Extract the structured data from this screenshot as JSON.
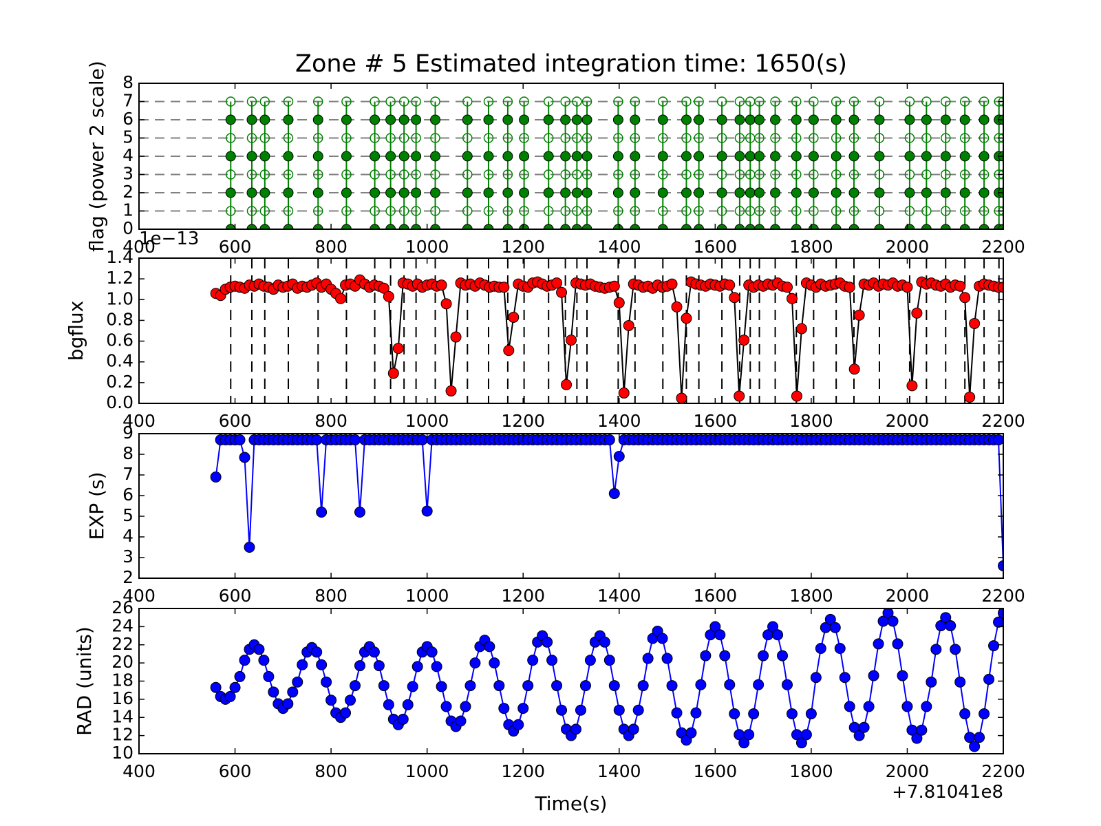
{
  "chart_data": [
    {
      "type": "flag",
      "title": "Zone # 5 Estimated integration time: 1650(s)",
      "ylabel": "flag (power 2 scale)",
      "x_offset": "+7.81041e8",
      "color": "#008000",
      "x": [
        591,
        635,
        662,
        711,
        773,
        832,
        891,
        924,
        952,
        977,
        1017,
        1084,
        1128,
        1168,
        1202,
        1253,
        1288,
        1312,
        1333,
        1398,
        1433,
        1491,
        1540,
        1566,
        1614,
        1651,
        1673,
        1692,
        1725,
        1769,
        1805,
        1852,
        1889,
        1942,
        2005,
        2040,
        2080,
        2120,
        2160,
        2191,
        2200
      ],
      "filled_levels": [
        0,
        2,
        4,
        6
      ],
      "open_levels": [
        1,
        3,
        5,
        7
      ],
      "hlines": [
        1,
        2,
        3,
        4,
        5,
        6,
        7
      ],
      "xlim": [
        400,
        2200
      ],
      "xticks": [
        400,
        600,
        800,
        1000,
        1200,
        1400,
        1600,
        1800,
        2000,
        2200
      ],
      "ylim": [
        0,
        8
      ],
      "yticks": [
        0,
        1,
        2,
        3,
        4,
        5,
        6,
        7,
        8
      ]
    },
    {
      "type": "line",
      "ylabel": "bgflux",
      "y_offset": "1e−13",
      "color": "#ff0000",
      "line_color": "#000000",
      "vlines": [
        591,
        635,
        662,
        711,
        773,
        832,
        891,
        924,
        952,
        977,
        1017,
        1084,
        1128,
        1168,
        1202,
        1253,
        1288,
        1312,
        1333,
        1398,
        1433,
        1491,
        1540,
        1566,
        1614,
        1651,
        1673,
        1692,
        1725,
        1769,
        1805,
        1852,
        1889,
        1942,
        2005,
        2040,
        2080,
        2120,
        2160,
        2191,
        2200
      ],
      "x": [
        560,
        570,
        580,
        590,
        600,
        610,
        620,
        630,
        640,
        650,
        660,
        670,
        680,
        690,
        700,
        710,
        720,
        730,
        740,
        750,
        760,
        770,
        780,
        790,
        800,
        810,
        820,
        830,
        840,
        850,
        860,
        870,
        880,
        890,
        900,
        910,
        920,
        930,
        940,
        950,
        960,
        970,
        980,
        990,
        1000,
        1010,
        1020,
        1030,
        1040,
        1050,
        1060,
        1070,
        1080,
        1090,
        1100,
        1110,
        1120,
        1130,
        1140,
        1150,
        1160,
        1170,
        1180,
        1190,
        1200,
        1210,
        1220,
        1230,
        1240,
        1250,
        1260,
        1270,
        1280,
        1290,
        1300,
        1310,
        1320,
        1330,
        1340,
        1350,
        1360,
        1370,
        1380,
        1390,
        1400,
        1410,
        1420,
        1430,
        1440,
        1450,
        1460,
        1470,
        1480,
        1490,
        1500,
        1510,
        1520,
        1530,
        1540,
        1550,
        1560,
        1570,
        1580,
        1590,
        1600,
        1610,
        1620,
        1630,
        1640,
        1650,
        1660,
        1670,
        1680,
        1690,
        1700,
        1710,
        1720,
        1730,
        1740,
        1750,
        1760,
        1770,
        1780,
        1790,
        1800,
        1810,
        1820,
        1830,
        1840,
        1850,
        1860,
        1870,
        1880,
        1890,
        1900,
        1910,
        1920,
        1930,
        1940,
        1950,
        1960,
        1970,
        1980,
        1990,
        2000,
        2010,
        2020,
        2030,
        2040,
        2050,
        2060,
        2070,
        2080,
        2090,
        2100,
        2110,
        2120,
        2130,
        2140,
        2150,
        2160,
        2170,
        2180,
        2190,
        2200
      ],
      "values": [
        1.06,
        1.04,
        1.1,
        1.12,
        1.13,
        1.12,
        1.11,
        1.14,
        1.13,
        1.15,
        1.13,
        1.12,
        1.1,
        1.14,
        1.12,
        1.13,
        1.15,
        1.11,
        1.13,
        1.12,
        1.14,
        1.16,
        1.12,
        1.15,
        1.1,
        1.06,
        1.01,
        1.14,
        1.15,
        1.13,
        1.19,
        1.15,
        1.12,
        1.14,
        1.13,
        1.11,
        1.03,
        0.29,
        0.53,
        1.16,
        1.15,
        1.13,
        1.15,
        1.12,
        1.14,
        1.15,
        1.13,
        1.14,
        0.96,
        0.12,
        0.64,
        1.16,
        1.14,
        1.15,
        1.13,
        1.16,
        1.14,
        1.12,
        1.13,
        1.12,
        1.12,
        0.51,
        0.83,
        1.15,
        1.13,
        1.12,
        1.16,
        1.17,
        1.15,
        1.13,
        1.14,
        1.16,
        1.07,
        0.18,
        0.61,
        1.16,
        1.15,
        1.14,
        1.15,
        1.13,
        1.12,
        1.11,
        1.12,
        1.13,
        0.97,
        0.1,
        0.75,
        1.15,
        1.14,
        1.12,
        1.13,
        1.11,
        1.14,
        1.12,
        1.13,
        1.15,
        0.93,
        0.05,
        0.82,
        1.17,
        1.15,
        1.14,
        1.13,
        1.15,
        1.14,
        1.13,
        1.15,
        1.14,
        1.02,
        0.07,
        0.61,
        1.14,
        1.12,
        1.14,
        1.13,
        1.15,
        1.14,
        1.16,
        1.13,
        1.12,
        1.01,
        0.07,
        0.72,
        1.16,
        1.14,
        1.12,
        1.15,
        1.13,
        1.14,
        1.15,
        1.16,
        1.13,
        1.12,
        0.33,
        0.85,
        1.15,
        1.14,
        1.16,
        1.13,
        1.15,
        1.14,
        1.16,
        1.13,
        1.14,
        1.12,
        0.17,
        0.87,
        1.17,
        1.15,
        1.16,
        1.14,
        1.13,
        1.15,
        1.12,
        1.14,
        1.13,
        1.02,
        0.06,
        0.77,
        1.13,
        1.15,
        1.14,
        1.13,
        1.12,
        1.12
      ],
      "xlim": [
        400,
        2200
      ],
      "xticks": [
        400,
        600,
        800,
        1000,
        1200,
        1400,
        1600,
        1800,
        2000,
        2200
      ],
      "ylim": [
        0,
        1.4
      ],
      "yticks": [
        {
          "value": 0,
          "label": "0.0"
        },
        0.2,
        0.4,
        0.6,
        0.8,
        {
          "value": 1,
          "label": "1.0"
        },
        1.2,
        1.4
      ]
    },
    {
      "type": "line",
      "ylabel": "EXP (s)",
      "color": "#0000ff",
      "line_color": "#0000ff",
      "x": [
        560,
        570,
        580,
        590,
        600,
        610,
        620,
        630,
        640,
        650,
        660,
        670,
        680,
        690,
        700,
        710,
        720,
        730,
        740,
        750,
        760,
        770,
        780,
        790,
        800,
        810,
        820,
        830,
        840,
        850,
        860,
        870,
        880,
        890,
        900,
        910,
        920,
        930,
        940,
        950,
        960,
        970,
        980,
        990,
        1000,
        1010,
        1020,
        1030,
        1040,
        1050,
        1060,
        1070,
        1080,
        1090,
        1100,
        1110,
        1120,
        1130,
        1140,
        1150,
        1160,
        1170,
        1180,
        1190,
        1200,
        1210,
        1220,
        1230,
        1240,
        1250,
        1260,
        1270,
        1280,
        1290,
        1300,
        1310,
        1320,
        1330,
        1340,
        1350,
        1360,
        1370,
        1380,
        1390,
        1400,
        1410,
        1420,
        1430,
        1440,
        1450,
        1460,
        1470,
        1480,
        1490,
        1500,
        1510,
        1520,
        1530,
        1540,
        1550,
        1560,
        1570,
        1580,
        1590,
        1600,
        1610,
        1620,
        1630,
        1640,
        1650,
        1660,
        1670,
        1680,
        1690,
        1700,
        1710,
        1720,
        1730,
        1740,
        1750,
        1760,
        1770,
        1780,
        1790,
        1800,
        1810,
        1820,
        1830,
        1840,
        1850,
        1860,
        1870,
        1880,
        1890,
        1900,
        1910,
        1920,
        1930,
        1940,
        1950,
        1960,
        1970,
        1980,
        1990,
        2000,
        2010,
        2020,
        2030,
        2040,
        2050,
        2060,
        2070,
        2080,
        2090,
        2100,
        2110,
        2120,
        2130,
        2140,
        2150,
        2160,
        2170,
        2180,
        2190,
        2200
      ],
      "values": [
        6.9,
        8.7,
        8.7,
        8.7,
        8.7,
        8.7,
        7.85,
        3.5,
        8.7,
        8.7,
        8.7,
        8.7,
        8.7,
        8.7,
        8.7,
        8.7,
        8.7,
        8.7,
        8.7,
        8.7,
        8.7,
        8.7,
        5.2,
        8.7,
        8.7,
        8.7,
        8.7,
        8.7,
        8.7,
        8.7,
        5.2,
        8.7,
        8.7,
        8.7,
        8.7,
        8.7,
        8.7,
        8.7,
        8.7,
        8.7,
        8.7,
        8.7,
        8.7,
        8.7,
        5.25,
        8.7,
        8.7,
        8.7,
        8.7,
        8.7,
        8.7,
        8.7,
        8.7,
        8.7,
        8.7,
        8.7,
        8.7,
        8.7,
        8.7,
        8.7,
        8.7,
        8.7,
        8.7,
        8.7,
        8.7,
        8.7,
        8.7,
        8.7,
        8.7,
        8.7,
        8.7,
        8.7,
        8.7,
        8.7,
        8.7,
        8.7,
        8.7,
        8.7,
        8.7,
        8.7,
        8.7,
        8.7,
        8.7,
        6.1,
        7.9,
        8.7,
        8.7,
        8.7,
        8.7,
        8.7,
        8.7,
        8.7,
        8.7,
        8.7,
        8.7,
        8.7,
        8.7,
        8.7,
        8.7,
        8.7,
        8.7,
        8.7,
        8.7,
        8.7,
        8.7,
        8.7,
        8.7,
        8.7,
        8.7,
        8.7,
        8.7,
        8.7,
        8.7,
        8.7,
        8.7,
        8.7,
        8.7,
        8.7,
        8.7,
        8.7,
        8.7,
        8.7,
        8.7,
        8.7,
        8.7,
        8.7,
        8.7,
        8.7,
        8.7,
        8.7,
        8.7,
        8.7,
        8.7,
        8.7,
        8.7,
        8.7,
        8.7,
        8.7,
        8.7,
        8.7,
        8.7,
        8.7,
        8.7,
        8.7,
        8.7,
        8.7,
        8.7,
        8.7,
        8.7,
        8.7,
        8.7,
        8.7,
        8.7,
        8.7,
        8.7,
        8.7,
        8.7,
        8.7,
        8.7,
        8.7,
        8.7,
        8.7,
        8.7,
        8.7,
        2.6
      ],
      "xlim": [
        400,
        2200
      ],
      "xticks": [
        400,
        600,
        800,
        1000,
        1200,
        1400,
        1600,
        1800,
        2000,
        2200
      ],
      "ylim": [
        2,
        9
      ],
      "yticks": [
        2,
        3,
        4,
        5,
        6,
        7,
        8,
        9
      ]
    },
    {
      "type": "line",
      "ylabel": "RAD (units)",
      "xlabel": "Time(s)",
      "x_offset": "+7.81041e8",
      "color": "#0000ff",
      "line_color": "#0000ff",
      "x": [
        560,
        570,
        580,
        590,
        600,
        610,
        620,
        630,
        640,
        650,
        660,
        670,
        680,
        690,
        700,
        710,
        720,
        730,
        740,
        750,
        760,
        770,
        780,
        790,
        800,
        810,
        820,
        830,
        840,
        850,
        860,
        870,
        880,
        890,
        900,
        910,
        920,
        930,
        940,
        950,
        960,
        970,
        980,
        990,
        1000,
        1010,
        1020,
        1030,
        1040,
        1050,
        1060,
        1070,
        1080,
        1090,
        1100,
        1110,
        1120,
        1130,
        1140,
        1150,
        1160,
        1170,
        1180,
        1190,
        1200,
        1210,
        1220,
        1230,
        1240,
        1250,
        1260,
        1270,
        1280,
        1290,
        1300,
        1310,
        1320,
        1330,
        1340,
        1350,
        1360,
        1370,
        1380,
        1390,
        1400,
        1410,
        1420,
        1430,
        1440,
        1450,
        1460,
        1470,
        1480,
        1490,
        1500,
        1510,
        1520,
        1530,
        1540,
        1550,
        1560,
        1570,
        1580,
        1590,
        1600,
        1610,
        1620,
        1630,
        1640,
        1650,
        1660,
        1670,
        1680,
        1690,
        1700,
        1710,
        1720,
        1730,
        1740,
        1750,
        1760,
        1770,
        1780,
        1790,
        1800,
        1810,
        1820,
        1830,
        1840,
        1850,
        1860,
        1870,
        1880,
        1890,
        1900,
        1910,
        1920,
        1930,
        1940,
        1950,
        1960,
        1970,
        1980,
        1990,
        2000,
        2010,
        2020,
        2030,
        2040,
        2050,
        2060,
        2070,
        2080,
        2090,
        2100,
        2110,
        2120,
        2130,
        2140,
        2150,
        2160,
        2170,
        2180,
        2190,
        2200
      ],
      "values": [
        17.3,
        16.3,
        16.0,
        16.3,
        17.3,
        18.5,
        20.3,
        21.5,
        22.0,
        21.5,
        20.3,
        18.5,
        16.8,
        15.5,
        15.0,
        15.5,
        16.8,
        17.9,
        19.8,
        21.2,
        21.7,
        21.2,
        19.8,
        17.9,
        15.9,
        14.5,
        14.0,
        14.5,
        15.9,
        17.5,
        19.7,
        21.2,
        21.8,
        21.2,
        19.7,
        17.5,
        15.4,
        13.8,
        13.2,
        13.8,
        15.4,
        17.4,
        19.6,
        21.2,
        21.8,
        21.2,
        19.6,
        17.4,
        15.2,
        13.6,
        13.0,
        13.6,
        15.2,
        17.5,
        20.0,
        21.8,
        22.5,
        21.8,
        20.0,
        17.5,
        15.0,
        13.2,
        12.5,
        13.2,
        15.0,
        17.5,
        20.3,
        22.3,
        23.0,
        22.3,
        20.3,
        17.5,
        14.8,
        12.7,
        12.0,
        12.7,
        14.8,
        17.5,
        20.3,
        22.3,
        23.0,
        22.3,
        20.3,
        17.5,
        14.8,
        12.7,
        12.0,
        12.7,
        14.8,
        17.5,
        20.5,
        22.7,
        23.5,
        22.7,
        20.5,
        17.5,
        14.5,
        12.3,
        11.5,
        12.3,
        14.5,
        17.6,
        20.8,
        23.1,
        24.0,
        23.1,
        20.8,
        17.6,
        14.4,
        12.1,
        11.2,
        12.1,
        14.4,
        17.6,
        20.8,
        23.1,
        24.0,
        23.1,
        20.8,
        17.6,
        14.4,
        12.1,
        11.2,
        12.1,
        14.4,
        18.4,
        21.6,
        23.9,
        24.8,
        23.9,
        21.6,
        18.4,
        15.2,
        12.9,
        12.0,
        12.9,
        15.2,
        18.6,
        22.1,
        24.6,
        25.5,
        24.6,
        22.1,
        18.6,
        15.2,
        12.6,
        11.7,
        12.6,
        15.2,
        17.9,
        21.5,
        24.1,
        25.0,
        24.1,
        21.5,
        17.9,
        14.4,
        11.8,
        10.8,
        11.8,
        14.4,
        18.2,
        21.9,
        24.5,
        25.5
      ],
      "xlim": [
        400,
        2200
      ],
      "xticks": [
        400,
        600,
        800,
        1000,
        1200,
        1400,
        1600,
        1800,
        2000,
        2200
      ],
      "ylim": [
        10,
        26
      ],
      "yticks": [
        10,
        12,
        14,
        16,
        18,
        20,
        22,
        24,
        26
      ]
    }
  ]
}
